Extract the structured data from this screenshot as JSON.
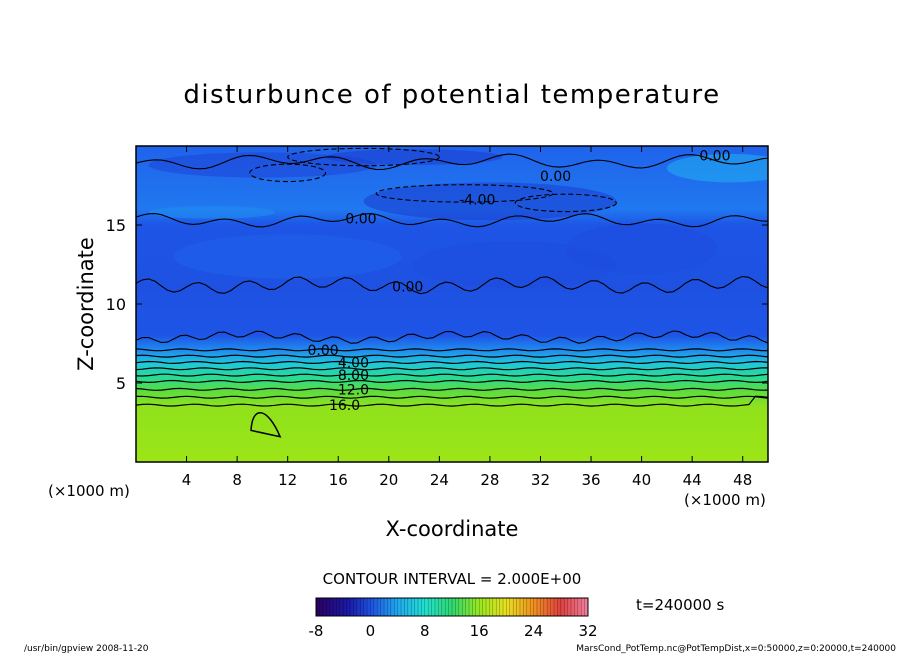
{
  "chart_data": {
    "type": "heatmap",
    "title": "disturbunce of potential temperature",
    "xlabel": "X-coordinate",
    "ylabel": "Z-coordinate",
    "x_unit": "(×1000 m)",
    "y_unit": "(×1000 m)",
    "xlim": [
      0,
      50
    ],
    "ylim": [
      0,
      20
    ],
    "xticks": [
      4,
      8,
      12,
      16,
      20,
      24,
      28,
      32,
      36,
      40,
      44,
      48
    ],
    "yticks": [
      5,
      10,
      15
    ],
    "contour_interval_label": "CONTOUR INTERVAL = 2.000E+00",
    "time_label": "t=240000 s",
    "colorbar": {
      "ticks": [
        -8,
        0,
        8,
        16,
        24,
        32
      ],
      "min": -8,
      "max": 32
    },
    "contour_labels": [
      {
        "text": "16.0",
        "x": 16.5,
        "z": 3.6
      },
      {
        "text": "12.0",
        "x": 17.2,
        "z": 4.6
      },
      {
        "text": "8.00",
        "x": 17.2,
        "z": 5.5
      },
      {
        "text": "4.00",
        "x": 17.2,
        "z": 6.3
      },
      {
        "text": "0.00",
        "x": 14.8,
        "z": 7.1
      },
      {
        "text": "0.00",
        "x": 21.5,
        "z": 11.1
      },
      {
        "text": "0.00",
        "x": 17.8,
        "z": 15.4
      },
      {
        "text": "-4.00",
        "x": 27.0,
        "z": 16.6
      },
      {
        "text": "0.00",
        "x": 33.2,
        "z": 18.1
      },
      {
        "text": "0.00",
        "x": 45.8,
        "z": 19.4
      }
    ],
    "profile": {
      "z": [
        0,
        3.5,
        4.5,
        5.3,
        6.2,
        7.0,
        8.0,
        11.0,
        15.0,
        16.0,
        20.0
      ],
      "theta": [
        18.5,
        17.0,
        14.0,
        10.0,
        6.0,
        2.0,
        -1.0,
        -1.5,
        -1.0,
        0.5,
        -0.5
      ]
    }
  },
  "footer": {
    "left": "/usr/bin/gpview   2008-11-20",
    "right": "MarsCond_PotTemp.nc@PotTempDist,x=0:50000,z=0:20000,t=240000"
  }
}
